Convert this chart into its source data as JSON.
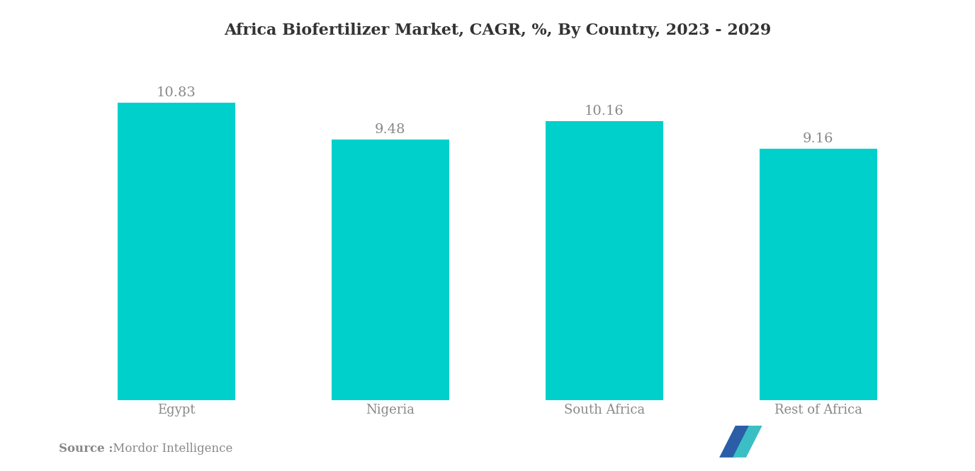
{
  "title": "Africa Biofertilizer Market, CAGR, %, By Country, 2023 - 2029",
  "categories": [
    "Egypt",
    "Nigeria",
    "South Africa",
    "Rest of Africa"
  ],
  "values": [
    10.83,
    9.48,
    10.16,
    9.16
  ],
  "bar_color": "#00D0CB",
  "label_color": "#888888",
  "title_color": "#333333",
  "bg_color": "#ffffff",
  "ylim": [
    0,
    12.5
  ],
  "bar_width": 0.55,
  "source_bold": "Source :",
  "source_normal": " Mordor Intelligence",
  "source_color": "#888888",
  "title_fontsize": 16,
  "tick_fontsize": 13,
  "value_fontsize": 14
}
